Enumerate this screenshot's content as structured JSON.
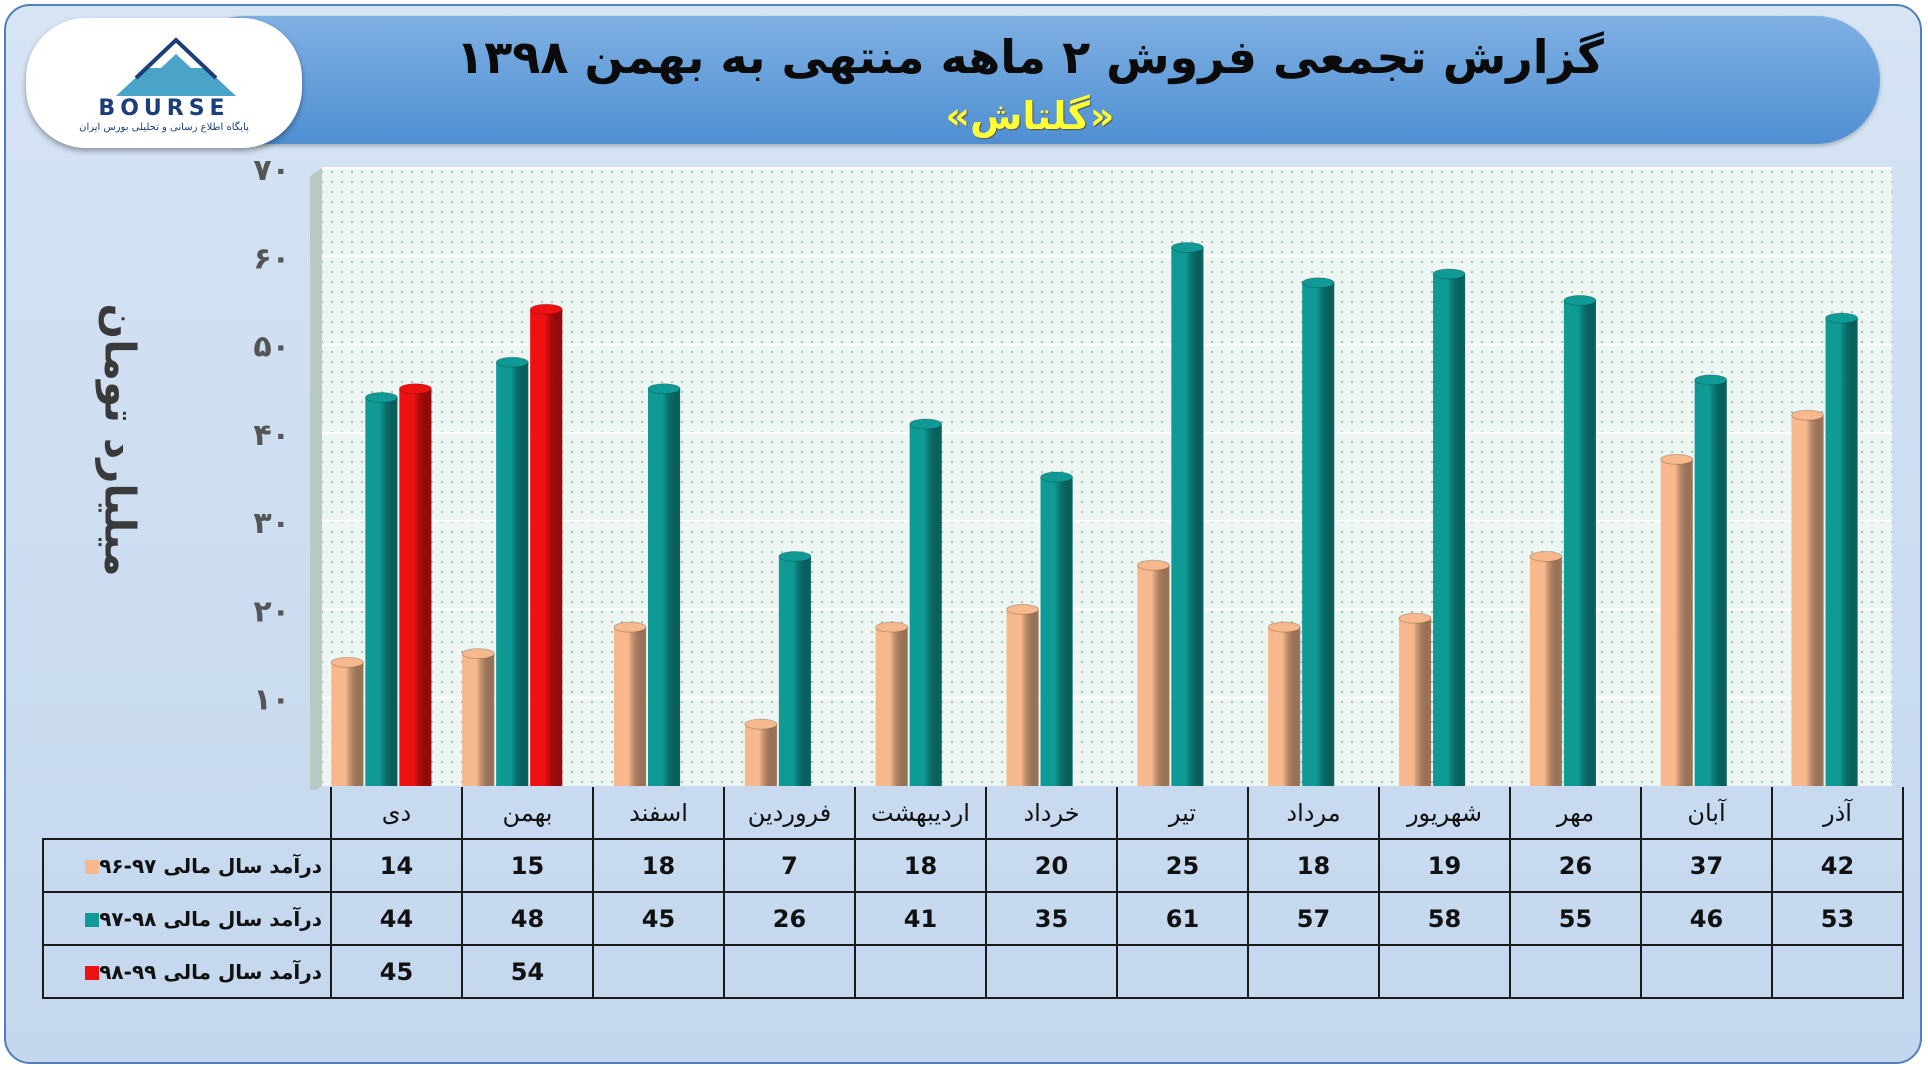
{
  "title": "گزارش تجمعی فروش ۲ ماهه منتهی به بهمن ۱۳۹۸",
  "subtitle": "«گلتاش»",
  "logo": {
    "text": "BOURSE",
    "tagline": "پایگاه اطلاع رسانی و تحلیلی بورس ایران"
  },
  "colors": {
    "series1": "#f6b88c",
    "series2": "#109a95",
    "series3": "#ee1111",
    "banner": "#5e9ad8",
    "plot_bg": "#eef6f4"
  },
  "chart_data": {
    "type": "bar",
    "ylabel": "میلیارد تومان",
    "ylim": [
      0,
      70
    ],
    "yticks": [
      {
        "value": 10,
        "label": "۱۰"
      },
      {
        "value": 20,
        "label": "۲۰"
      },
      {
        "value": 30,
        "label": "۳۰"
      },
      {
        "value": 40,
        "label": "۴۰"
      },
      {
        "value": 50,
        "label": "۵۰"
      },
      {
        "value": 60,
        "label": "۶۰"
      },
      {
        "value": 70,
        "label": "۷۰"
      }
    ],
    "categories": [
      "دی",
      "بهمن",
      "اسفند",
      "فروردین",
      "اردیبهشت",
      "خرداد",
      "تیر",
      "مرداد",
      "شهریور",
      "مهر",
      "آبان",
      "آذر"
    ],
    "series": [
      {
        "name": "درآمد سال مالی ۹۷-۹۶",
        "color": "#f6b88c",
        "values": [
          14,
          15,
          18,
          7,
          18,
          20,
          25,
          18,
          19,
          26,
          37,
          42
        ]
      },
      {
        "name": "درآمد سال مالی ۹۸-۹۷",
        "color": "#109a95",
        "values": [
          44,
          48,
          45,
          26,
          41,
          35,
          61,
          57,
          58,
          55,
          46,
          53
        ]
      },
      {
        "name": "درآمد سال مالی ۹۹-۹۸",
        "color": "#ee1111",
        "values": [
          45,
          54,
          null,
          null,
          null,
          null,
          null,
          null,
          null,
          null,
          null,
          null
        ]
      }
    ],
    "grid": true,
    "legend": "table-left"
  }
}
